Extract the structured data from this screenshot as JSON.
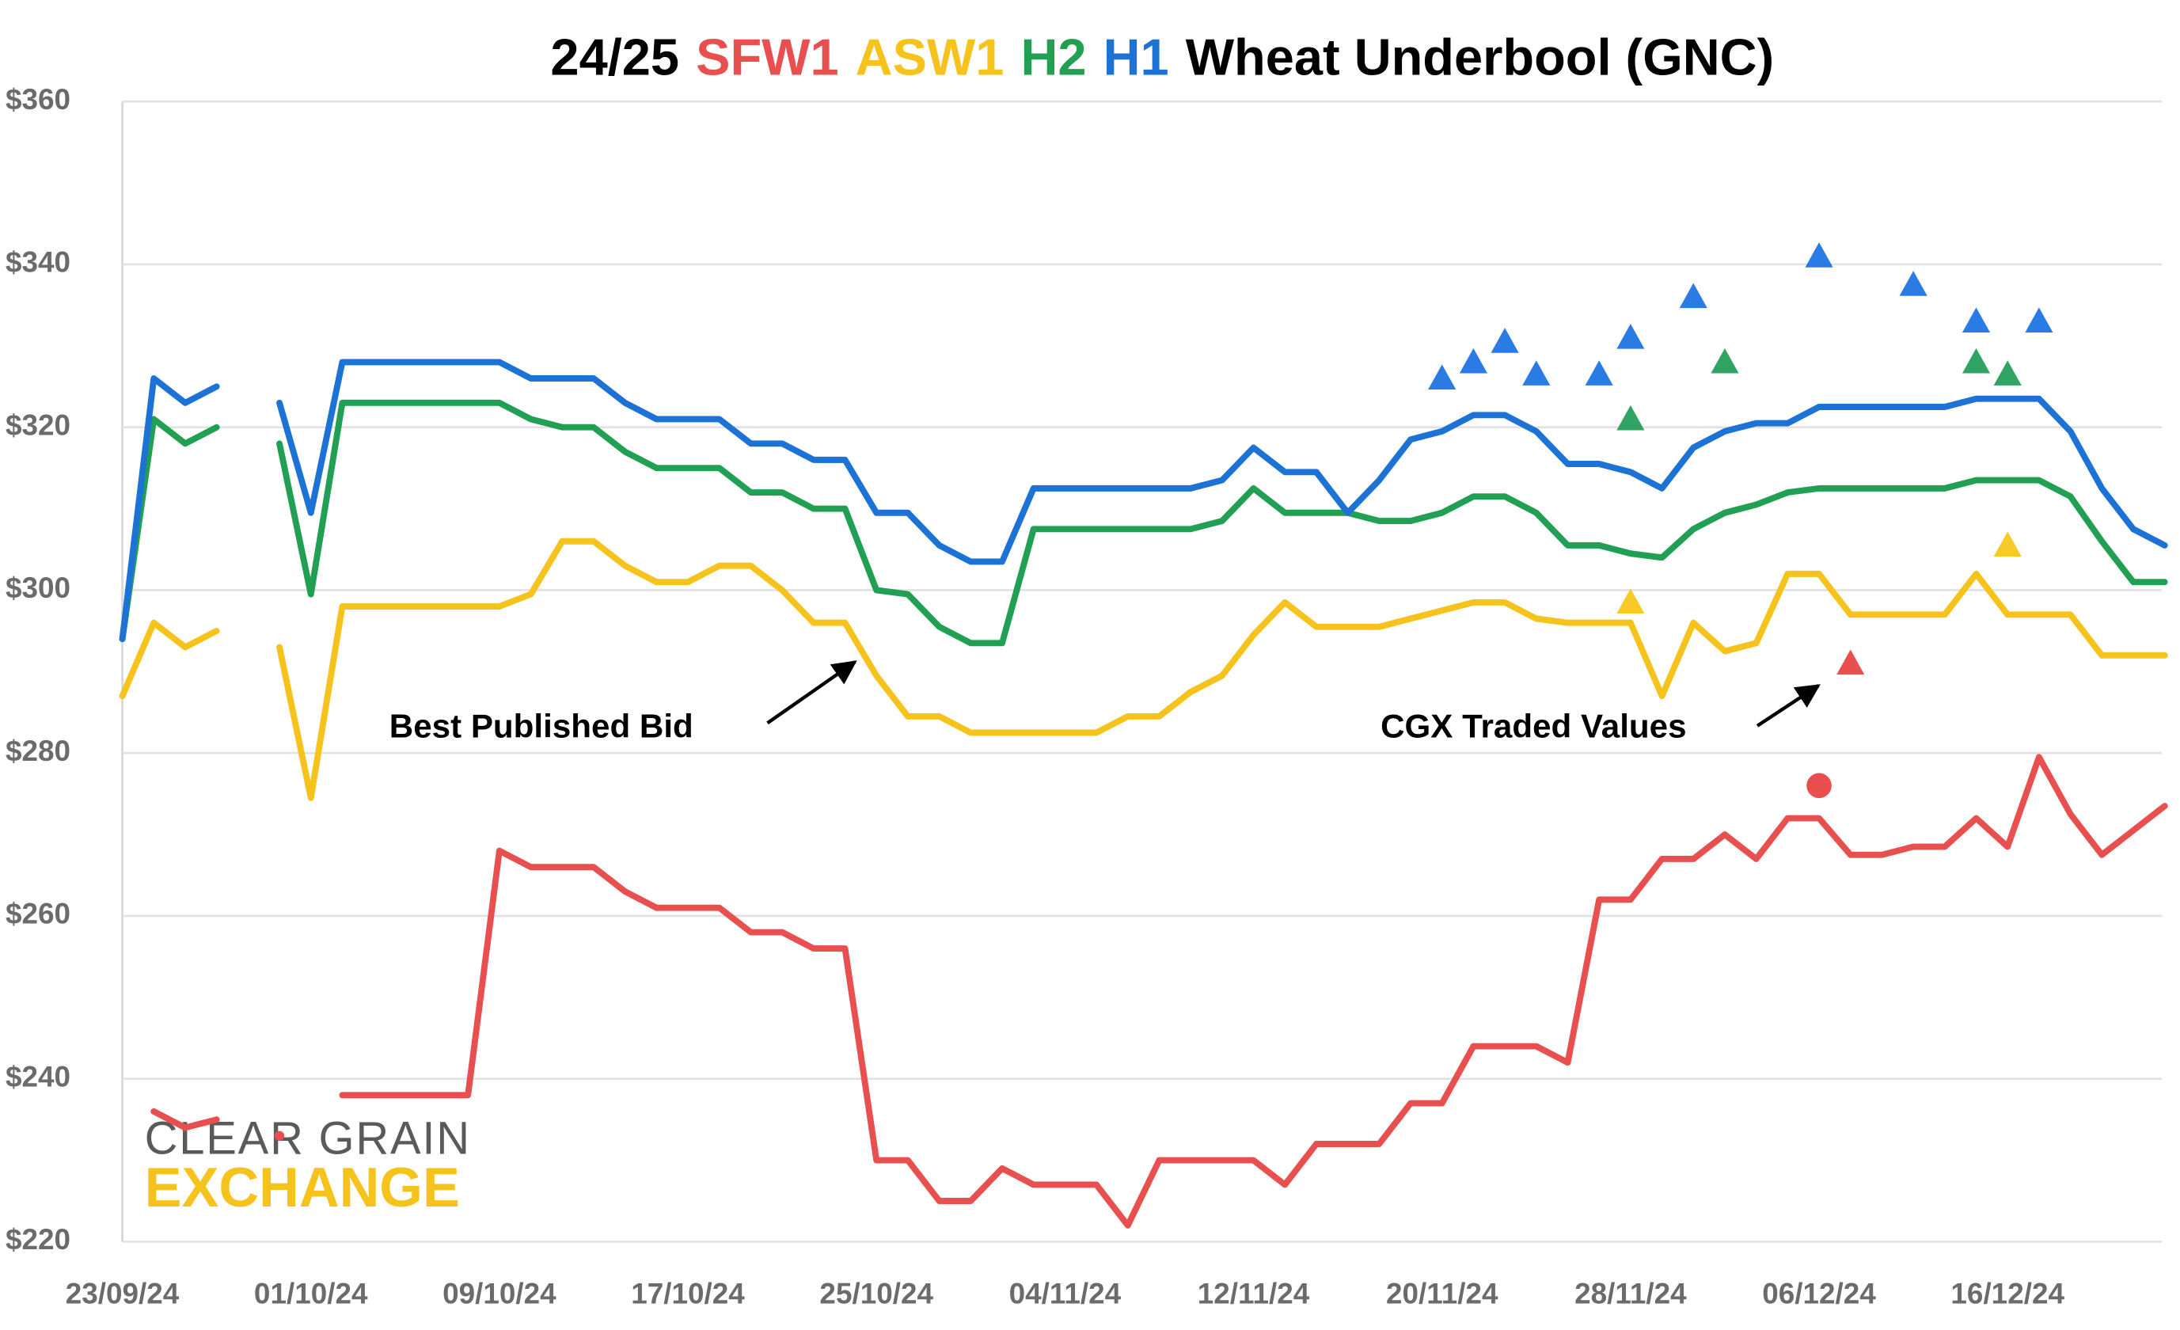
{
  "chart_data": {
    "type": "line",
    "title_prefix": "24/25",
    "title_suffix": "Wheat Underbool (GNC)",
    "categories": [
      "23/09/24",
      null,
      null,
      null,
      null,
      null,
      "01/10/24",
      null,
      null,
      null,
      null,
      null,
      "09/10/24",
      null,
      null,
      null,
      null,
      null,
      "17/10/24",
      null,
      null,
      null,
      null,
      null,
      "25/10/24",
      null,
      null,
      null,
      null,
      null,
      "04/11/24",
      null,
      null,
      null,
      null,
      null,
      "12/11/24",
      null,
      null,
      null,
      null,
      null,
      "20/11/24",
      null,
      null,
      null,
      null,
      null,
      "28/11/24",
      null,
      null,
      null,
      null,
      null,
      "06/12/24",
      null,
      null,
      null,
      null,
      null,
      "16/12/24",
      null,
      null,
      null,
      null,
      null
    ],
    "ylim": [
      220,
      360
    ],
    "yticks": [
      {
        "value": 220,
        "label": "$220"
      },
      {
        "value": 240,
        "label": "$240"
      },
      {
        "value": 260,
        "label": "$260"
      },
      {
        "value": 280,
        "label": "$280"
      },
      {
        "value": 300,
        "label": "$300"
      },
      {
        "value": 320,
        "label": "$320"
      },
      {
        "value": 340,
        "label": "$340"
      },
      {
        "value": 360,
        "label": "$360"
      }
    ],
    "grid": true,
    "series": [
      {
        "name": "SFW1",
        "color": "#e8504f",
        "values": [
          null,
          236,
          234,
          235,
          null,
          233,
          null,
          238,
          238,
          238,
          238,
          238,
          268,
          266,
          266,
          266,
          263,
          261,
          261,
          261,
          258,
          258,
          256,
          256,
          230,
          230,
          225,
          225,
          229,
          227,
          227,
          227,
          222,
          230,
          230,
          230,
          230,
          227,
          232,
          232,
          232,
          237,
          237,
          244,
          244,
          244,
          242,
          262,
          262,
          267,
          267,
          270,
          267,
          272,
          272,
          267.5,
          267.5,
          268.5,
          268.5,
          272,
          268.5,
          279.5,
          272.5,
          267.5,
          270.5,
          273.5
        ]
      },
      {
        "name": "ASW1",
        "color": "#f6c31c",
        "values": [
          287,
          296,
          293,
          295,
          null,
          293,
          274.5,
          298,
          298,
          298,
          298,
          298,
          298,
          299.5,
          306,
          306,
          303,
          301,
          301,
          303,
          303,
          300,
          296,
          296,
          289.5,
          284.5,
          284.5,
          282.5,
          282.5,
          282.5,
          282.5,
          282.5,
          284.5,
          284.5,
          287.5,
          289.5,
          294.5,
          298.5,
          295.5,
          295.5,
          295.5,
          296.5,
          297.5,
          298.5,
          298.5,
          296.5,
          296,
          296,
          296,
          287,
          296,
          292.5,
          293.5,
          302,
          302,
          297,
          297,
          297,
          297,
          302,
          297,
          297,
          297,
          292,
          292,
          292
        ]
      },
      {
        "name": "H2",
        "color": "#21a053",
        "values": [
          294,
          321,
          318,
          320,
          null,
          318,
          299.5,
          323,
          323,
          323,
          323,
          323,
          323,
          321,
          320,
          320,
          317,
          315,
          315,
          315,
          312,
          312,
          310,
          310,
          300,
          299.5,
          295.5,
          293.5,
          293.5,
          307.5,
          307.5,
          307.5,
          307.5,
          307.5,
          307.5,
          308.5,
          312.5,
          309.5,
          309.5,
          309.5,
          308.5,
          308.5,
          309.5,
          311.5,
          311.5,
          309.5,
          305.5,
          305.5,
          304.5,
          304,
          307.5,
          309.5,
          310.5,
          312,
          312.5,
          312.5,
          312.5,
          312.5,
          312.5,
          313.5,
          313.5,
          313.5,
          311.5,
          306,
          301,
          301
        ]
      },
      {
        "name": "H1",
        "color": "#1d72d6",
        "values": [
          294,
          326,
          323,
          325,
          null,
          323,
          309.5,
          328,
          328,
          328,
          328,
          328,
          328,
          326,
          326,
          326,
          323,
          321,
          321,
          321,
          318,
          318,
          316,
          316,
          309.5,
          309.5,
          305.5,
          303.5,
          303.5,
          312.5,
          312.5,
          312.5,
          312.5,
          312.5,
          312.5,
          313.5,
          317.5,
          314.5,
          314.5,
          309.5,
          313.5,
          318.5,
          319.5,
          321.5,
          321.5,
          319.5,
          315.5,
          315.5,
          314.5,
          312.5,
          317.5,
          319.5,
          320.5,
          320.5,
          322.5,
          322.5,
          322.5,
          322.5,
          322.5,
          323.5,
          323.5,
          323.5,
          319.5,
          312.5,
          307.5,
          305.5
        ]
      },
      {
        "color": "#2b7be5",
        "marker": "triangle",
        "values": [
          null,
          null,
          null,
          null,
          null,
          null,
          null,
          null,
          null,
          null,
          null,
          null,
          null,
          null,
          null,
          null,
          null,
          null,
          null,
          null,
          null,
          null,
          null,
          null,
          null,
          null,
          null,
          null,
          null,
          null,
          null,
          null,
          null,
          null,
          null,
          null,
          null,
          null,
          null,
          null,
          null,
          null,
          326,
          328,
          330.5,
          326.5,
          null,
          326.5,
          331,
          null,
          336,
          null,
          null,
          null,
          341,
          null,
          null,
          337.5,
          null,
          333,
          null,
          333,
          null,
          null,
          null,
          null
        ]
      },
      {
        "color": "#31a463",
        "marker": "triangle",
        "values": [
          null,
          null,
          null,
          null,
          null,
          null,
          null,
          null,
          null,
          null,
          null,
          null,
          null,
          null,
          null,
          null,
          null,
          null,
          null,
          null,
          null,
          null,
          null,
          null,
          null,
          null,
          null,
          null,
          null,
          null,
          null,
          null,
          null,
          null,
          null,
          null,
          null,
          null,
          null,
          null,
          null,
          null,
          null,
          null,
          null,
          null,
          null,
          null,
          321,
          null,
          null,
          328,
          null,
          null,
          null,
          null,
          null,
          null,
          null,
          328,
          326.5,
          null,
          null,
          null,
          null,
          null
        ]
      },
      {
        "color": "#f8c927",
        "marker": "triangle",
        "values": [
          null,
          null,
          null,
          null,
          null,
          null,
          null,
          null,
          null,
          null,
          null,
          null,
          null,
          null,
          null,
          null,
          null,
          null,
          null,
          null,
          null,
          null,
          null,
          null,
          null,
          null,
          null,
          null,
          null,
          null,
          null,
          null,
          null,
          null,
          null,
          null,
          null,
          null,
          null,
          null,
          null,
          null,
          null,
          null,
          null,
          null,
          null,
          null,
          298.5,
          null,
          null,
          null,
          null,
          null,
          null,
          null,
          null,
          null,
          null,
          null,
          305.5,
          null,
          null,
          null,
          null,
          null
        ]
      },
      {
        "color": "#e94f4f",
        "marker": "triangle",
        "values": [
          null,
          null,
          null,
          null,
          null,
          null,
          null,
          null,
          null,
          null,
          null,
          null,
          null,
          null,
          null,
          null,
          null,
          null,
          null,
          null,
          null,
          null,
          null,
          null,
          null,
          null,
          null,
          null,
          null,
          null,
          null,
          null,
          null,
          null,
          null,
          null,
          null,
          null,
          null,
          null,
          null,
          null,
          null,
          null,
          null,
          null,
          null,
          null,
          null,
          null,
          null,
          null,
          null,
          null,
          null,
          291,
          null,
          null,
          null,
          null,
          null,
          null,
          null,
          null,
          null,
          null
        ]
      },
      {
        "color": "#e94f4f",
        "marker": "circle",
        "values": [
          null,
          null,
          null,
          null,
          null,
          null,
          null,
          null,
          null,
          null,
          null,
          null,
          null,
          null,
          null,
          null,
          null,
          null,
          null,
          null,
          null,
          null,
          null,
          null,
          null,
          null,
          null,
          null,
          null,
          null,
          null,
          null,
          null,
          null,
          null,
          null,
          null,
          null,
          null,
          null,
          null,
          null,
          null,
          null,
          null,
          null,
          null,
          null,
          null,
          null,
          null,
          null,
          null,
          null,
          276,
          null,
          null,
          null,
          null,
          null,
          null,
          null,
          null,
          null,
          null,
          null
        ]
      }
    ],
    "annotations": [
      {
        "text": "Best Published Bid"
      },
      {
        "text": "CGX Traded Values"
      }
    ],
    "logo_text": [
      "CLEAR GRAIN",
      "EXCHANGE"
    ]
  }
}
